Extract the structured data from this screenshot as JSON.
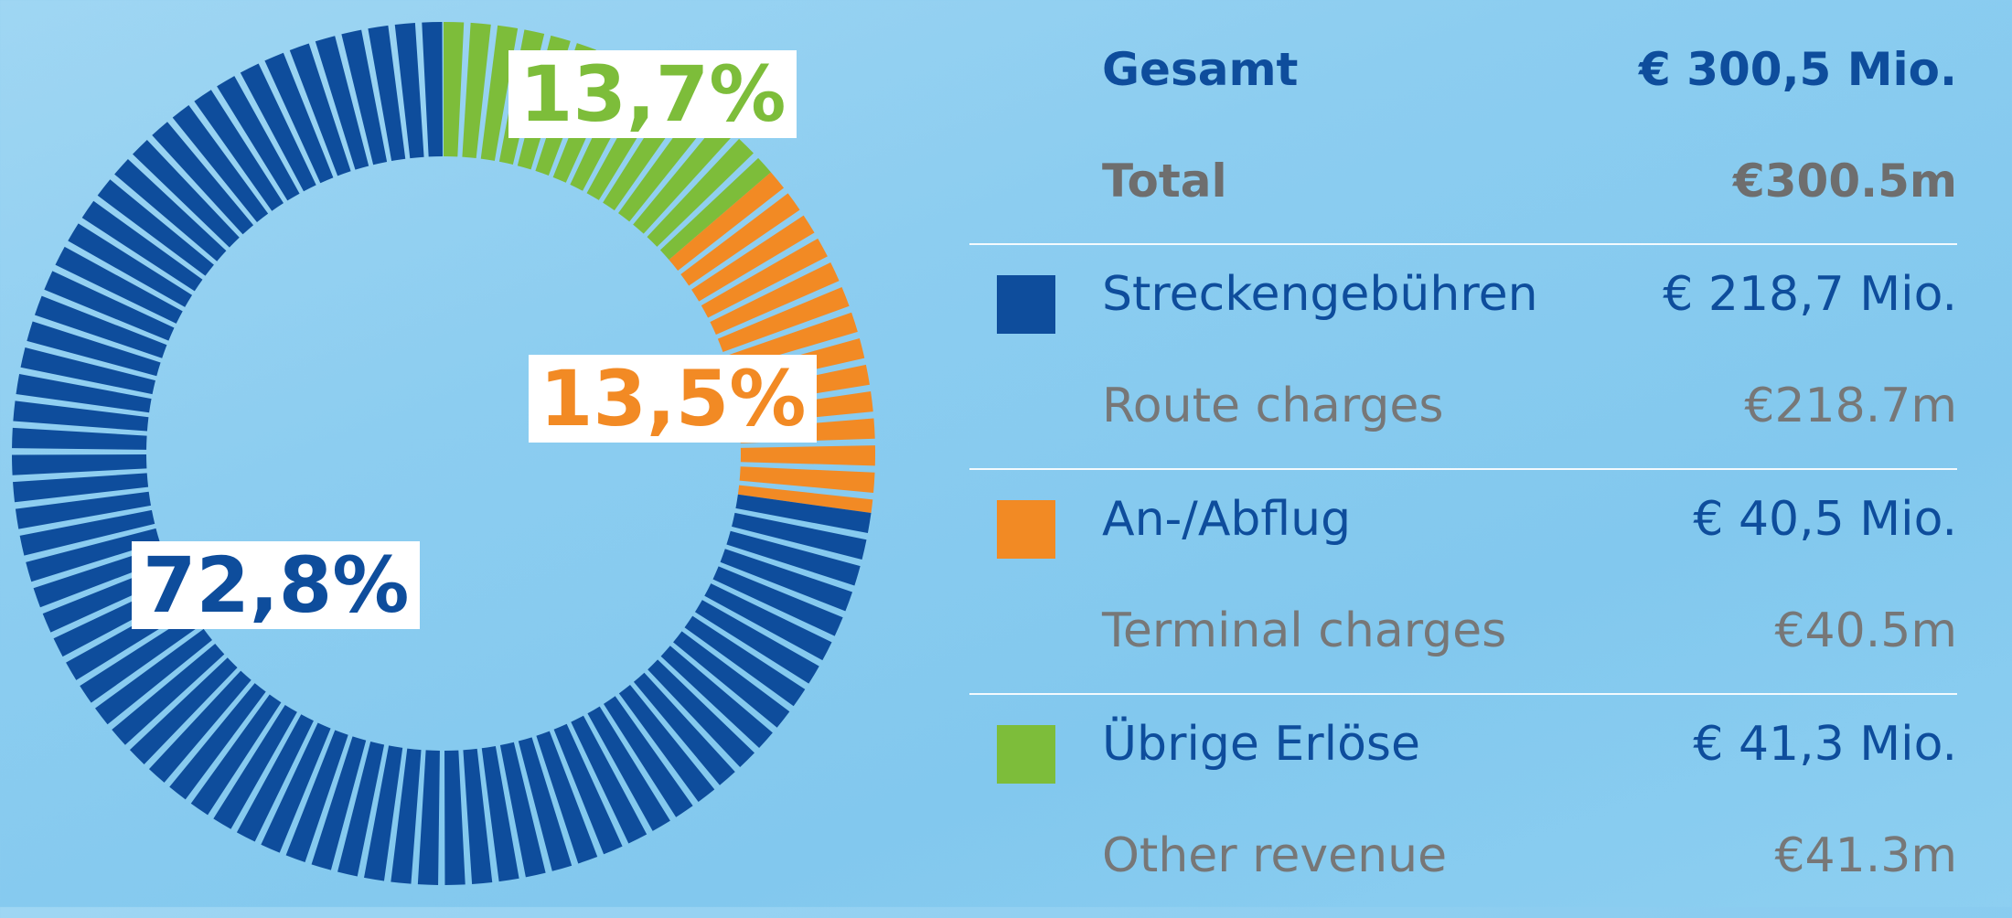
{
  "chart_data": {
    "type": "pie",
    "style": "donut",
    "categories": [
      "Streckengebühren",
      "An-/Abflug",
      "Übrige Erlöse"
    ],
    "values": [
      72.8,
      13.5,
      13.7
    ],
    "labels": [
      "72,8%",
      "13,5%",
      "13,7%"
    ],
    "colors": [
      "#0e4d9c",
      "#f28a24",
      "#7dbd3a"
    ]
  },
  "legend": {
    "total": {
      "de_label": "Gesamt",
      "de_value": "€ 300,5 Mio.",
      "en_label": "Total",
      "en_value": "€300.5m"
    },
    "items": [
      {
        "de_label": "Streckengebühren",
        "de_value": "€ 218,7 Mio.",
        "en_label": "Route charges",
        "en_value": "€218.7m",
        "color": "#0e4d9c"
      },
      {
        "de_label": "An-/Abflug",
        "de_value": "€ 40,5 Mio.",
        "en_label": "Terminal charges",
        "en_value": "€40.5m",
        "color": "#f28a24"
      },
      {
        "de_label": "Übrige Erlöse",
        "de_value": "€ 41,3 Mio.",
        "en_label": "Other revenue",
        "en_value": "€41.3m",
        "color": "#7dbd3a"
      }
    ]
  }
}
